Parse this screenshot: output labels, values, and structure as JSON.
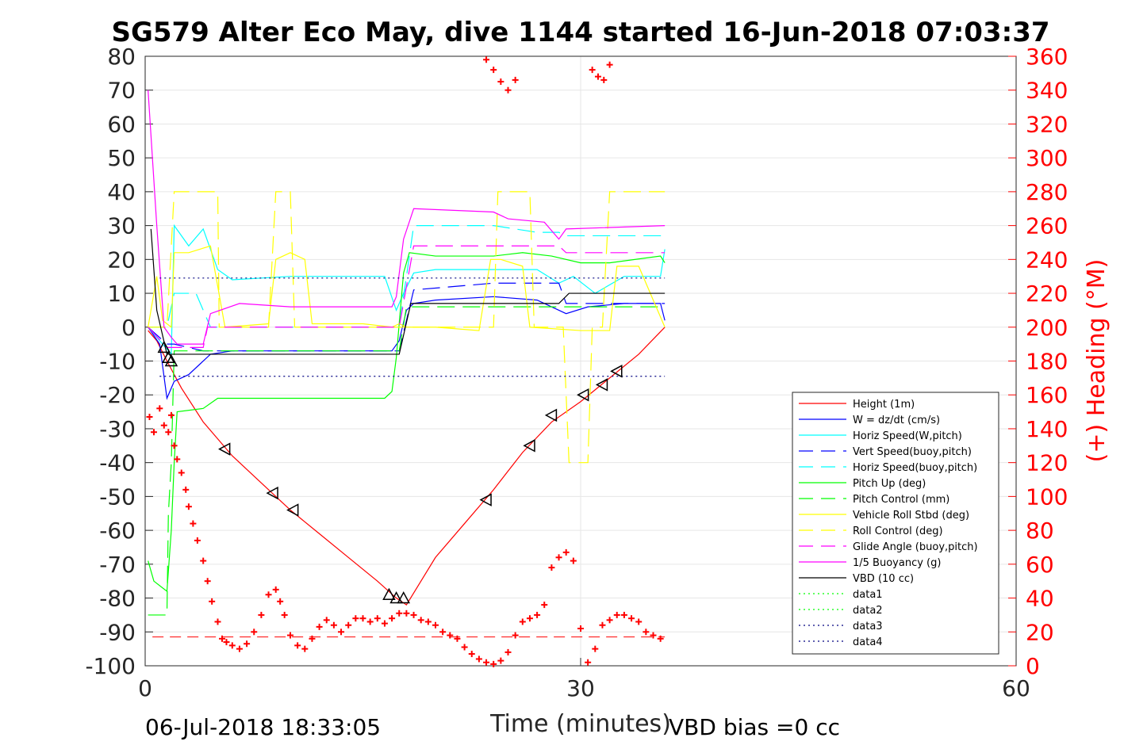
{
  "chart_data": {
    "type": "line",
    "title": "SG579 Alter Eco May, dive 1144 started 16-Jun-2018 07:03:37",
    "xlabel": "Time (minutes)",
    "ylabel_right": "(+) Heading (°M)",
    "xlim": [
      0,
      60
    ],
    "ylim": [
      -100,
      80
    ],
    "ylim_right": [
      0,
      360
    ],
    "x_ticks": [
      0,
      30,
      60
    ],
    "y_ticks": [
      80,
      70,
      60,
      50,
      40,
      30,
      20,
      10,
      0,
      -10,
      -20,
      -30,
      -40,
      -50,
      -60,
      -70,
      -80,
      -90,
      -100
    ],
    "y_ticks_right": [
      360,
      340,
      320,
      300,
      280,
      260,
      240,
      220,
      200,
      180,
      160,
      140,
      120,
      100,
      80,
      60,
      40,
      20,
      0
    ],
    "grid": true,
    "legend_position": "lower-right",
    "footer_left": "06-Jul-2018 18:33:05",
    "footer_right": "VBD bias =0 cc",
    "series": [
      {
        "name": "Height (1m)",
        "color": "#ff0000",
        "style": "solid",
        "axis": "left",
        "x": [
          0.2,
          0.8,
          1.5,
          2.5,
          4,
          6,
          8,
          10,
          12,
          14,
          16,
          17.3,
          18,
          19,
          20,
          22,
          24,
          26,
          28,
          30,
          32,
          34,
          35.8
        ],
        "y": [
          -1,
          -4,
          -10,
          -18,
          -28,
          -38,
          -46,
          -54,
          -61,
          -68,
          -75,
          -80,
          -82,
          -75,
          -68,
          -58,
          -48,
          -37,
          -28,
          -22,
          -15,
          -8,
          0
        ]
      },
      {
        "name": "W = dz/dt (cm/s)",
        "color": "#0000ff",
        "style": "solid",
        "axis": "left",
        "x": [
          0.2,
          1.0,
          1.5,
          2.0,
          3.0,
          4.5,
          6,
          10,
          14,
          17,
          17.5,
          18,
          18.5,
          20,
          24,
          27,
          29,
          30.5,
          33,
          35.5,
          35.8
        ],
        "y": [
          0,
          -5,
          -21,
          -16,
          -14,
          -8,
          -7,
          -7,
          -7,
          -7,
          -4,
          5,
          7,
          8,
          9,
          8,
          4,
          6,
          7,
          7,
          2
        ]
      },
      {
        "name": "Horiz Speed(W,pitch)",
        "color": "#00ffff",
        "style": "solid",
        "axis": "left",
        "x": [
          0.2,
          1.2,
          1.8,
          2.0,
          3,
          4,
          5,
          6,
          10,
          14,
          16.5,
          17.3,
          17.8,
          18.5,
          20,
          24,
          27,
          28.5,
          29.5,
          31,
          33,
          35.5,
          35.8
        ],
        "y": [
          0,
          -5,
          -8,
          30,
          24,
          29,
          17,
          14,
          15,
          15,
          15,
          5,
          10,
          16,
          17,
          17,
          17,
          13,
          15,
          10,
          15,
          15,
          23
        ]
      },
      {
        "name": "Vert Speed(buoy,pitch)",
        "color": "#0000ff",
        "style": "dashed",
        "axis": "left",
        "x": [
          0.2,
          1.5,
          2,
          4,
          4.5,
          17.5,
          18.5,
          24,
          27,
          28.5,
          29,
          35.8
        ],
        "y": [
          0,
          -5,
          -5,
          -7,
          -7,
          -7,
          11,
          13,
          13,
          13,
          7,
          7
        ]
      },
      {
        "name": "Horiz Speed(buoy,pitch)",
        "color": "#00ffff",
        "style": "dashed",
        "axis": "left",
        "x": [
          0.2,
          1.5,
          2,
          3.5,
          4.5,
          17.5,
          18.5,
          24,
          27,
          28.5,
          29,
          35.8
        ],
        "y": [
          0,
          0,
          10,
          10,
          0,
          0,
          30,
          30,
          28,
          28,
          27,
          27
        ]
      },
      {
        "name": "Pitch Up (deg)",
        "color": "#00ff00",
        "style": "solid",
        "axis": "left",
        "x": [
          0.2,
          0.6,
          1.2,
          1.5,
          1.8,
          2.0,
          2.2,
          4,
          5,
          8,
          14,
          16.5,
          17.0,
          17.3,
          17.8,
          18.2,
          20,
          24,
          26,
          28,
          30,
          32,
          35.5,
          35.8
        ],
        "y": [
          -69,
          -75,
          -77,
          -78,
          -60,
          -40,
          -25,
          -24,
          -21,
          -21,
          -21,
          -21,
          -19,
          -9,
          16,
          22,
          21,
          21,
          22,
          21,
          19,
          19,
          21,
          19
        ]
      },
      {
        "name": "Pitch Control (mm)",
        "color": "#00ff00",
        "style": "dashed",
        "axis": "left",
        "x": [
          0.2,
          1.5,
          1.6,
          1.8,
          2.0,
          17.5,
          18.0,
          35.8
        ],
        "y": [
          -85,
          -85,
          -55,
          -40,
          -7,
          -7,
          6,
          6
        ]
      },
      {
        "name": "Vehicle Roll Stbd (deg)",
        "color": "#ffff00",
        "style": "solid",
        "axis": "left",
        "x": [
          0.2,
          0.8,
          1.2,
          1.8,
          2.0,
          3,
          4.5,
          5.5,
          8.5,
          9,
          10,
          11,
          11.5,
          15,
          17,
          17.5,
          18,
          20,
          23,
          23.8,
          24.5,
          26,
          26.5,
          30,
          32,
          32.5,
          34,
          35.8
        ],
        "y": [
          0,
          15,
          2,
          0,
          22,
          22,
          24,
          0,
          1,
          20,
          22,
          20,
          1,
          1,
          0,
          1,
          0,
          0,
          -1,
          20,
          20,
          18,
          0,
          -1,
          -1,
          18,
          18,
          0
        ]
      },
      {
        "name": "Roll Control (deg)",
        "color": "#ffff00",
        "style": "dashed",
        "axis": "left",
        "x": [
          0.2,
          1.5,
          2.0,
          5.0,
          5.1,
          8.5,
          9,
          10,
          10.3,
          24,
          24.3,
          26.5,
          26.8,
          28.8,
          29.2,
          30.5,
          30.8,
          31.5,
          32,
          35.8
        ],
        "y": [
          0,
          0,
          40,
          40,
          0,
          0,
          40,
          40,
          0,
          0,
          40,
          40,
          0,
          0,
          -40,
          -40,
          0,
          0,
          40,
          40
        ]
      },
      {
        "name": "Glide Angle (buoy,pitch)",
        "color": "#ff00ff",
        "style": "dashed",
        "axis": "left",
        "x": [
          0.2,
          1.5,
          2.0,
          4.0,
          4.3,
          17.5,
          18.5,
          24,
          27,
          28.5,
          29,
          35.8
        ],
        "y": [
          0,
          -6,
          -6,
          -6,
          0,
          0,
          24,
          24,
          24,
          24,
          22,
          22
        ]
      },
      {
        "name": "1/5 Buoyancy (g)",
        "color": "#ff00ff",
        "style": "solid",
        "axis": "left",
        "x": [
          0.2,
          0.8,
          1.3,
          1.8,
          2.2,
          4.0,
          4.5,
          6.5,
          10,
          14,
          17.0,
          17.3,
          17.8,
          18.5,
          24,
          25,
          27.5,
          28.5,
          29.0,
          35.8
        ],
        "y": [
          70,
          30,
          0,
          -3,
          -5,
          -5,
          4,
          7,
          6,
          6,
          6,
          9,
          26,
          35,
          34,
          32,
          31,
          26,
          29,
          30
        ]
      },
      {
        "name": "VBD (10 cc)",
        "color": "#000000",
        "style": "solid",
        "axis": "left",
        "x": [
          0.4,
          0.8,
          1.5,
          2.0,
          17.0,
          17.5,
          18.3,
          28.5,
          29.2,
          35.8
        ],
        "y": [
          29,
          5,
          -8,
          -8,
          -8,
          -8,
          7,
          7,
          10,
          10
        ]
      },
      {
        "name": "data1",
        "color": "#00ff00",
        "style": "dotted",
        "axis": "left",
        "x": [],
        "y": []
      },
      {
        "name": "data2",
        "color": "#00ff00",
        "style": "dotted",
        "axis": "left",
        "x": [],
        "y": []
      },
      {
        "name": "data3",
        "color": "#000080",
        "style": "dotted",
        "axis": "left",
        "x": [
          1.0,
          35.8
        ],
        "y": [
          14.5,
          14.5
        ]
      },
      {
        "name": "data4",
        "color": "#000080",
        "style": "dotted",
        "axis": "left",
        "x": [
          1.0,
          35.8
        ],
        "y": [
          -14.5,
          -14.5
        ]
      }
    ],
    "reference_line": {
      "color": "#ff0000",
      "style": "dashed",
      "axis": "left",
      "x": [
        0.5,
        35.8
      ],
      "y": [
        -91.5,
        -91.5
      ]
    },
    "heading": {
      "name": "(+) Heading (°M)",
      "color": "#ff0000",
      "marker": "+",
      "axis": "right",
      "x": [
        0.3,
        0.6,
        1.0,
        1.3,
        1.6,
        1.8,
        2.0,
        2.2,
        2.5,
        2.8,
        3.0,
        3.3,
        3.6,
        4.0,
        4.3,
        4.6,
        5.0,
        5.3,
        5.6,
        6.0,
        6.5,
        7.0,
        7.5,
        8.0,
        8.5,
        9.0,
        9.3,
        9.6,
        10.0,
        10.5,
        11.0,
        11.5,
        12.0,
        12.5,
        13.0,
        13.5,
        14.0,
        14.5,
        15.0,
        15.5,
        16.0,
        16.5,
        17.0,
        17.5,
        18.0,
        18.5,
        19.0,
        19.5,
        20.0,
        20.5,
        21.0,
        21.5,
        22.0,
        22.5,
        23.0,
        23.5,
        24.0,
        24.5,
        25.0,
        25.5,
        26.0,
        26.5,
        27.0,
        27.5,
        28.0,
        28.5,
        29.0,
        29.5,
        30.0,
        30.5,
        31.0,
        31.5,
        32.0,
        32.5,
        33.0,
        33.5,
        34.0,
        34.5,
        35.0,
        35.5
      ],
      "y": [
        147,
        138,
        152,
        142,
        138,
        148,
        130,
        122,
        114,
        104,
        94,
        84,
        74,
        62,
        50,
        38,
        26,
        16,
        14,
        12,
        10,
        13,
        20,
        30,
        42,
        45,
        38,
        30,
        18,
        12,
        10,
        16,
        23,
        27,
        24,
        20,
        24,
        28,
        28,
        26,
        28,
        25,
        28,
        31,
        31,
        30,
        27,
        26,
        24,
        20,
        18,
        16,
        11,
        7,
        4,
        2,
        1,
        3,
        8,
        18,
        26,
        28,
        30,
        36,
        58,
        64,
        67,
        62,
        22,
        2,
        10,
        24,
        27,
        30,
        30,
        28,
        26,
        20,
        18,
        16
      ]
    },
    "heading_top": {
      "x": [
        23.5,
        24.0,
        24.5,
        25.0,
        25.5,
        30.8,
        31.2,
        31.6,
        32.0
      ],
      "y": [
        358,
        352,
        345,
        340,
        346,
        352,
        348,
        346,
        355
      ]
    },
    "markers": {
      "down": {
        "symbol": "triangle-left",
        "x": [
          5.5,
          8.8,
          10.2,
          23.5,
          26.5,
          28.0,
          30.2,
          31.5,
          32.5
        ],
        "y": [
          -36,
          -49,
          -54,
          -51,
          -35,
          -26,
          -20,
          -17,
          -13
        ]
      },
      "up": {
        "symbol": "triangle-up",
        "x": [
          1.3,
          1.6,
          1.8,
          16.8,
          17.3,
          17.8
        ],
        "y": [
          -6,
          -9,
          -10,
          -79,
          -80,
          -80
        ]
      }
    }
  }
}
